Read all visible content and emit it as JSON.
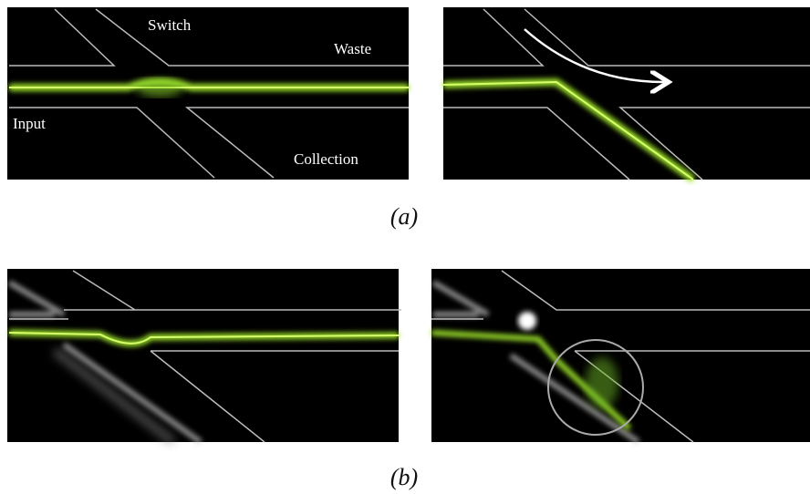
{
  "figure": {
    "panel_a": {
      "labels": {
        "switch": "Switch",
        "waste": "Waste",
        "input": "Input",
        "collection": "Collection"
      },
      "caption": "(a)"
    },
    "panel_b": {
      "caption": "(b)"
    }
  }
}
